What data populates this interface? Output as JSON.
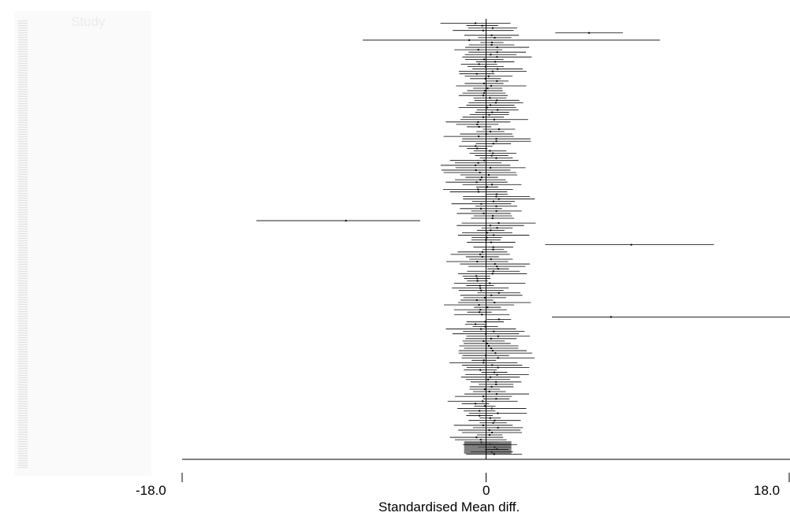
{
  "chart_data": {
    "type": "forest",
    "title": "",
    "column_header": "Study",
    "xlabel": "Standardised Mean diff.",
    "xlim": [
      -18.0,
      18.0
    ],
    "x_ticks": [
      -18.0,
      0,
      18.0
    ],
    "x_tick_labels": [
      "-18.0",
      "0",
      "18.0"
    ],
    "reference_line": 0,
    "study_count": 180,
    "clipped_interval_note": "one interval extends past the right edge (upper bound beyond 18.0)",
    "notable_intervals": [
      {
        "row": 4,
        "estimate": 6.1,
        "lower": 4.1,
        "upper": 8.1
      },
      {
        "row": 7,
        "estimate": -1.0,
        "lower": -7.3,
        "upper": 10.3
      },
      {
        "row": 82,
        "estimate": -8.3,
        "lower": -13.6,
        "upper": -3.9
      },
      {
        "row": 92,
        "estimate": 8.6,
        "lower": 3.5,
        "upper": 13.5
      },
      {
        "row": 122,
        "estimate": 7.4,
        "lower": 3.9,
        "upper": 19.0
      }
    ],
    "pooled": {
      "estimate": 0.2,
      "lower": -1.3,
      "upper": 1.5
    },
    "grid": false,
    "legend": "none"
  }
}
